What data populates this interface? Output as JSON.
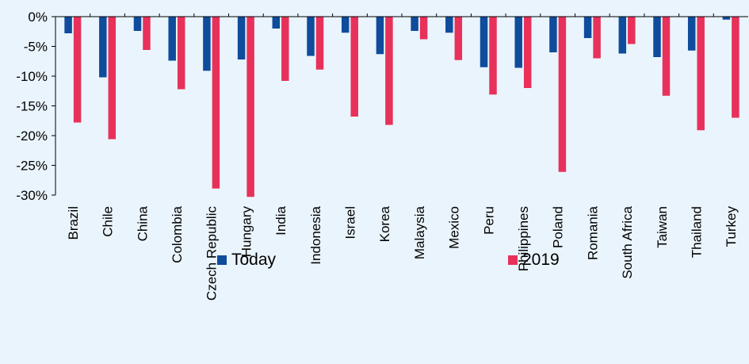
{
  "chart_data": {
    "type": "bar",
    "categories": [
      "Brazil",
      "Chile",
      "China",
      "Colombia",
      "Czech Republic",
      "Hungary",
      "India",
      "Indonesia",
      "Israel",
      "Korea",
      "Malaysia",
      "Mexico",
      "Peru",
      "Philippines",
      "Poland",
      "Romania",
      "South Africa",
      "Taiwan",
      "Thailand",
      "Turkey"
    ],
    "series": [
      {
        "name": "Today",
        "color": "#0f4c9c",
        "values": [
          -2.8,
          -10.2,
          -2.4,
          -7.4,
          -9.1,
          -7.2,
          -2.0,
          -6.6,
          -2.7,
          -6.3,
          -2.4,
          -2.7,
          -8.5,
          -8.6,
          -6.0,
          -3.6,
          -6.2,
          -6.8,
          -5.7,
          -0.5
        ]
      },
      {
        "name": "2019",
        "color": "#e8315a",
        "values": [
          -17.8,
          -20.6,
          -5.6,
          -12.2,
          -28.9,
          -30.3,
          -10.8,
          -8.9,
          -16.8,
          -18.2,
          -3.8,
          -7.3,
          -13.1,
          -12.0,
          -26.1,
          -7.0,
          -4.6,
          -13.3,
          -19.1,
          -17.0
        ]
      }
    ],
    "y_ticks": [
      "0%",
      "-5%",
      "-10%",
      "-15%",
      "-20%",
      "-25%",
      "-30%"
    ],
    "ylim": [
      -30,
      0
    ],
    "legend_position": "bottom",
    "grid": false
  }
}
